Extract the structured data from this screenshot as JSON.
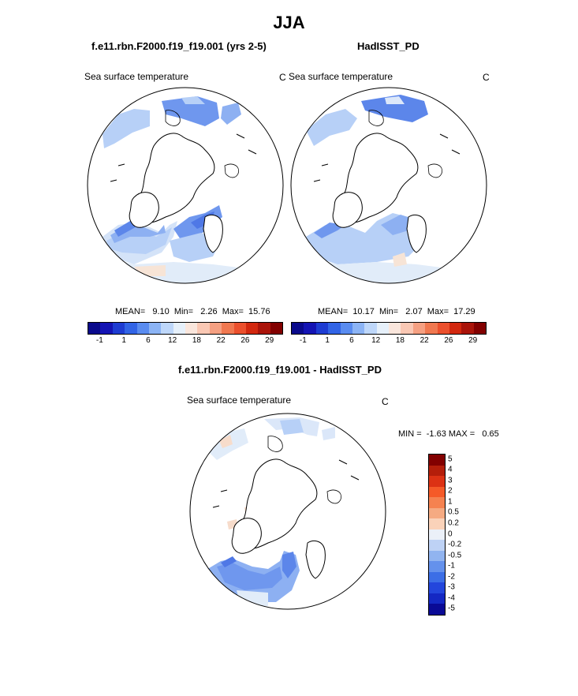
{
  "title": "JJA",
  "panel_left": {
    "case": "f.e11.rbn.F2000.f19_f19.001 (yrs 2-5)",
    "variable": "Sea surface temperature",
    "units": "C",
    "stats": "MEAN=   9.10  Min=   2.26  Max=  15.76"
  },
  "panel_right": {
    "case": "HadISST_PD",
    "variable": "Sea surface temperature",
    "units": "C",
    "stats": "MEAN=  10.17  Min=   2.07  Max=  17.29"
  },
  "diff_panel": {
    "case": "f.e11.rbn.F2000.f19_f19.001 - HadISST_PD",
    "variable": "Sea surface temperature",
    "units": "C",
    "stats": "MIN =  -1.63 MAX =   0.65"
  },
  "abs_colorbar": {
    "colors": [
      "#0a0a8c",
      "#1414b4",
      "#1e3cd2",
      "#3264e6",
      "#5a8cf0",
      "#8cb4f5",
      "#bed7fa",
      "#e6f0fa",
      "#fae6dc",
      "#fac8b4",
      "#f5a082",
      "#f07850",
      "#eb502d",
      "#d2280f",
      "#aa140a",
      "#820000"
    ],
    "ticks": [
      "-1",
      "1",
      "6",
      "12",
      "18",
      "22",
      "26",
      "29"
    ]
  },
  "diff_colorbar": {
    "colors": [
      "#820000",
      "#b41e0a",
      "#dc3214",
      "#f55a28",
      "#f58250",
      "#f5aa82",
      "#fad2b9",
      "#ebf0f8",
      "#bed2f5",
      "#91b4f0",
      "#6491ec",
      "#3c6ee6",
      "#2346dc",
      "#1428c3",
      "#0a0a96"
    ],
    "ticks": [
      "5",
      "4",
      "3",
      "2",
      "1",
      "0.5",
      "0.2",
      "0",
      "-0.2",
      "-0.5",
      "-1",
      "-2",
      "-3",
      "-4",
      "-5"
    ]
  }
}
